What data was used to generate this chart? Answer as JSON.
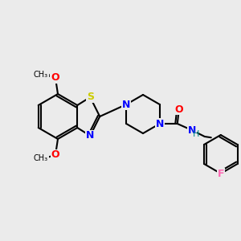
{
  "background_color": "#ebebeb",
  "bond_color": "#000000",
  "bond_width": 1.5,
  "atom_colors": {
    "N": "#0000ff",
    "O": "#ff0000",
    "S": "#cccc00",
    "F": "#ff69b4",
    "H": "#008b8b",
    "C": "#000000"
  },
  "font_size": 9,
  "font_size_small": 8
}
